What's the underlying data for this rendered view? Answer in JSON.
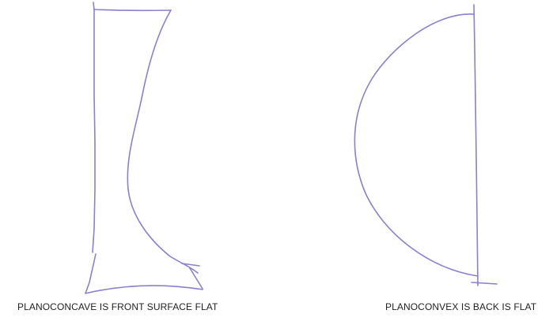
{
  "style": {
    "stroke_color": "#8b7fd0"
  },
  "lenses": [
    {
      "name": "planoconcave",
      "caption": "PLANOCONCAVE IS FRONT SURFACE FLAT"
    },
    {
      "name": "planoconvex",
      "caption": "PLANOCONVEX IS BACK IS FLAT"
    }
  ]
}
